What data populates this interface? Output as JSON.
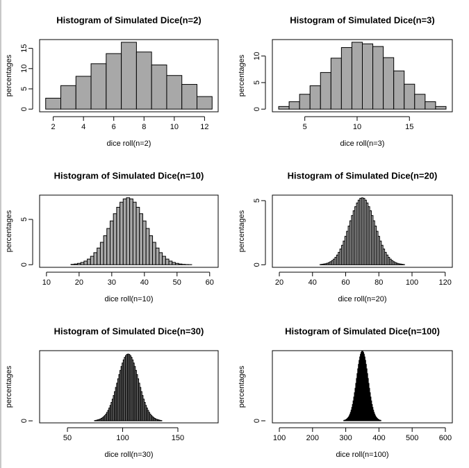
{
  "chart_data": [
    {
      "type": "histogram",
      "title": "Histogram of Simulated Dice(n=2)",
      "xlabel": "dice roll(n=2)",
      "ylabel": "percentages",
      "color": "#a8a8a8",
      "bins": [
        1.5,
        2.5,
        3.5,
        4.5,
        5.5,
        6.5,
        7.5,
        8.5,
        9.5,
        10.5,
        11.5,
        12.5
      ],
      "values": [
        2.7,
        5.8,
        8.1,
        11.2,
        13.7,
        16.5,
        14.1,
        10.9,
        8.3,
        6.1,
        3.1
      ],
      "xlim": [
        1.1,
        12.9
      ],
      "ylim": [
        -0.66,
        17.16
      ],
      "xticks": [
        2,
        4,
        6,
        8,
        10,
        12
      ],
      "yticks": [
        0,
        5,
        10,
        15
      ]
    },
    {
      "type": "histogram",
      "title": "Histogram of Simulated Dice(n=3)",
      "xlabel": "dice roll(n=3)",
      "ylabel": "percentages",
      "color": "#a8a8a8",
      "bins": [
        2.5,
        3.5,
        4.5,
        5.5,
        6.5,
        7.5,
        8.5,
        9.5,
        10.5,
        11.5,
        12.5,
        13.5,
        14.5,
        15.5,
        16.5,
        17.5,
        18.5
      ],
      "values": [
        0.5,
        1.4,
        2.8,
        4.4,
        6.9,
        9.6,
        11.6,
        12.6,
        12.3,
        11.8,
        9.7,
        7.2,
        4.7,
        2.8,
        1.4,
        0.5
      ],
      "xlim": [
        1.9,
        19.1
      ],
      "ylim": [
        -0.5,
        13.1
      ],
      "xticks": [
        5,
        10,
        15
      ],
      "yticks": [
        0,
        5,
        10
      ]
    },
    {
      "type": "histogram",
      "title": "Histogram of Simulated Dice(n=10)",
      "xlabel": "dice roll(n=10)",
      "ylabel": "percentages",
      "color": "#a8a8a8",
      "bins": [
        17.5,
        18.5,
        19.5,
        20.5,
        21.5,
        22.5,
        23.5,
        24.5,
        25.5,
        26.5,
        27.5,
        28.5,
        29.5,
        30.5,
        31.5,
        32.5,
        33.5,
        34.5,
        35.5,
        36.5,
        37.5,
        38.5,
        39.5,
        40.5,
        41.5,
        42.5,
        43.5,
        44.5,
        45.5,
        46.5,
        47.5,
        48.5,
        49.5,
        50.5,
        51.5,
        52.5,
        53.5,
        54.5
      ],
      "values": [
        0.04,
        0.08,
        0.15,
        0.25,
        0.4,
        0.62,
        0.93,
        1.33,
        1.84,
        2.47,
        3.2,
        4.0,
        4.83,
        5.63,
        6.34,
        6.9,
        7.26,
        7.39,
        7.26,
        6.9,
        6.34,
        5.63,
        4.83,
        4.0,
        3.2,
        2.47,
        1.84,
        1.33,
        0.93,
        0.62,
        0.4,
        0.25,
        0.15,
        0.08,
        0.04,
        0.02,
        0.01
      ],
      "xlim": [
        7.9,
        62.6
      ],
      "ylim": [
        -0.29,
        7.68
      ],
      "xticks": [
        10,
        20,
        30,
        40,
        50,
        60
      ],
      "yticks": [
        0,
        5
      ]
    },
    {
      "type": "histogram",
      "title": "Histogram of Simulated Dice(n=20)",
      "xlabel": "dice roll(n=20)",
      "ylabel": "percentages",
      "color": "#a8a8a8",
      "bins": [
        44.5,
        45.5,
        46.5,
        47.5,
        48.5,
        49.5,
        50.5,
        51.5,
        52.5,
        53.5,
        54.5,
        55.5,
        56.5,
        57.5,
        58.5,
        59.5,
        60.5,
        61.5,
        62.5,
        63.5,
        64.5,
        65.5,
        66.5,
        67.5,
        68.5,
        69.5,
        70.5,
        71.5,
        72.5,
        73.5,
        74.5,
        75.5,
        76.5,
        77.5,
        78.5,
        79.5,
        80.5,
        81.5,
        82.5,
        83.5,
        84.5,
        85.5,
        86.5,
        87.5,
        88.5,
        89.5,
        90.5,
        91.5,
        92.5,
        93.5,
        94.5,
        95.5
      ],
      "values": [
        0.02,
        0.04,
        0.06,
        0.08,
        0.12,
        0.17,
        0.24,
        0.33,
        0.44,
        0.58,
        0.76,
        0.97,
        1.23,
        1.52,
        1.85,
        2.22,
        2.61,
        3.02,
        3.43,
        3.84,
        4.21,
        4.53,
        4.82,
        5.04,
        5.18,
        5.22,
        5.18,
        5.04,
        4.82,
        4.53,
        4.21,
        3.84,
        3.43,
        3.02,
        2.61,
        2.22,
        1.85,
        1.52,
        1.23,
        0.97,
        0.76,
        0.58,
        0.44,
        0.33,
        0.24,
        0.17,
        0.12,
        0.08,
        0.06,
        0.04,
        0.02
      ],
      "xlim": [
        15.8,
        124.3
      ],
      "ylim": [
        -0.2,
        5.43
      ],
      "xticks": [
        20,
        40,
        60,
        80,
        100,
        120
      ],
      "yticks": [
        0,
        5
      ]
    },
    {
      "type": "histogram",
      "title": "Histogram of Simulated Dice(n=30)",
      "xlabel": "dice roll(n=30)",
      "ylabel": "percentages",
      "color": "#a8a8a8",
      "bins": [
        74.5,
        75.5,
        76.5,
        77.5,
        78.5,
        79.5,
        80.5,
        81.5,
        82.5,
        83.5,
        84.5,
        85.5,
        86.5,
        87.5,
        88.5,
        89.5,
        90.5,
        91.5,
        92.5,
        93.5,
        94.5,
        95.5,
        96.5,
        97.5,
        98.5,
        99.5,
        100.5,
        101.5,
        102.5,
        103.5,
        104.5,
        105.5,
        106.5,
        107.5,
        108.5,
        109.5,
        110.5,
        111.5,
        112.5,
        113.5,
        114.5,
        115.5,
        116.5,
        117.5,
        118.5,
        119.5,
        120.5,
        121.5,
        122.5,
        123.5,
        124.5,
        125.5,
        126.5,
        127.5,
        128.5,
        129.5,
        130.5,
        131.5,
        132.5,
        133.5,
        134.5,
        135.5
      ],
      "values": [
        0.02,
        0.03,
        0.05,
        0.07,
        0.09,
        0.12,
        0.16,
        0.21,
        0.27,
        0.34,
        0.43,
        0.54,
        0.67,
        0.82,
        0.99,
        1.18,
        1.39,
        1.62,
        1.87,
        2.14,
        2.41,
        2.69,
        2.96,
        3.23,
        3.48,
        3.7,
        3.9,
        4.06,
        4.17,
        4.25,
        4.27,
        4.25,
        4.17,
        4.06,
        3.9,
        3.7,
        3.48,
        3.23,
        2.96,
        2.69,
        2.41,
        2.14,
        1.87,
        1.62,
        1.39,
        1.18,
        0.99,
        0.82,
        0.67,
        0.54,
        0.43,
        0.34,
        0.27,
        0.21,
        0.16,
        0.12,
        0.09,
        0.07,
        0.05,
        0.03,
        0.02
      ],
      "xlim": [
        24.8,
        186.5
      ],
      "ylim": [
        -0.13,
        4.49
      ],
      "xticks": [
        50,
        100,
        150
      ],
      "yticks": [
        0
      ]
    },
    {
      "type": "histogram",
      "title": "Histogram of Simulated Dice(n=100)",
      "xlabel": "dice roll(n=100)",
      "ylabel": "percentages",
      "color": "#a8a8a8",
      "bins": [
        294,
        296,
        298,
        300,
        302,
        304,
        306,
        308,
        310,
        312,
        314,
        316,
        318,
        320,
        322,
        324,
        326,
        328,
        330,
        332,
        334,
        336,
        338,
        340,
        342,
        344,
        346,
        348,
        350,
        352,
        354,
        356,
        358,
        360,
        362,
        364,
        366,
        368,
        370,
        372,
        374,
        376,
        378,
        380,
        382,
        384,
        386,
        388,
        390,
        392,
        394,
        396,
        398,
        400,
        402,
        404,
        406
      ],
      "values": [
        0.03,
        0.04,
        0.05,
        0.08,
        0.11,
        0.15,
        0.2,
        0.26,
        0.34,
        0.45,
        0.57,
        0.72,
        0.9,
        1.1,
        1.34,
        1.6,
        1.89,
        2.19,
        2.52,
        2.85,
        3.18,
        3.5,
        3.8,
        4.07,
        4.3,
        4.48,
        4.6,
        4.67,
        4.67,
        4.6,
        4.48,
        4.3,
        4.07,
        3.8,
        3.5,
        3.18,
        2.85,
        2.52,
        2.19,
        1.89,
        1.6,
        1.34,
        1.1,
        0.9,
        0.72,
        0.57,
        0.45,
        0.34,
        0.26,
        0.2,
        0.15,
        0.11,
        0.08,
        0.05,
        0.04,
        0.03
      ],
      "xlim": [
        79,
        621
      ],
      "ylim": [
        -0.14,
        4.72
      ],
      "xticks": [
        100,
        200,
        300,
        400,
        500,
        600
      ],
      "yticks": [
        0
      ]
    }
  ]
}
